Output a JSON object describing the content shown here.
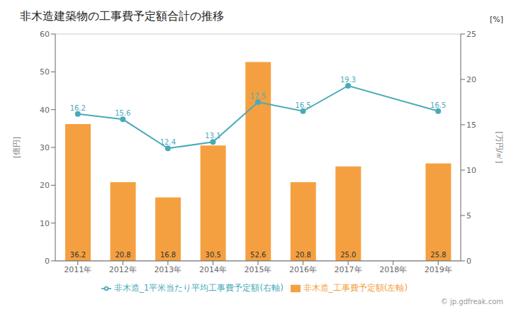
{
  "chart_data": {
    "type": "bar",
    "title": "非木造建築物の工事費予定額合計の推移",
    "categories": [
      "2011年",
      "2012年",
      "2013年",
      "2014年",
      "2015年",
      "2016年",
      "2017年",
      "2018年",
      "2019年"
    ],
    "series": [
      {
        "name": "非木造_工事費予定額(左軸)",
        "type": "bar",
        "color": "#F5A040",
        "values": [
          36.2,
          20.8,
          16.8,
          30.5,
          52.6,
          20.8,
          25.0,
          null,
          25.8
        ],
        "value_labels": [
          "36.2",
          "20.8",
          "16.8",
          "30.5",
          "52.6",
          "20.8",
          "25.0",
          null,
          "25.8"
        ]
      },
      {
        "name": "非木造_1平米当たり平均工事費予定額(右軸)",
        "type": "line",
        "axis": "y2",
        "color": "#4AAAB8",
        "marker": "circle",
        "values": [
          16.2,
          15.6,
          12.4,
          13.1,
          17.5,
          16.5,
          19.3,
          null,
          16.5
        ]
      }
    ],
    "ylabel": "[億円]",
    "y2label": "[万円/㎡]",
    "ylim": [
      0,
      60
    ],
    "yticks": [
      0,
      10,
      20,
      30,
      40,
      50,
      60
    ],
    "y2lim": [
      0,
      25
    ],
    "y2ticks": [
      0,
      5,
      10,
      15,
      20,
      25
    ],
    "grid": true,
    "legend": "bottom",
    "data_labels": true,
    "annotations": [
      "[%]",
      "© jp.gdfreak.com"
    ]
  }
}
